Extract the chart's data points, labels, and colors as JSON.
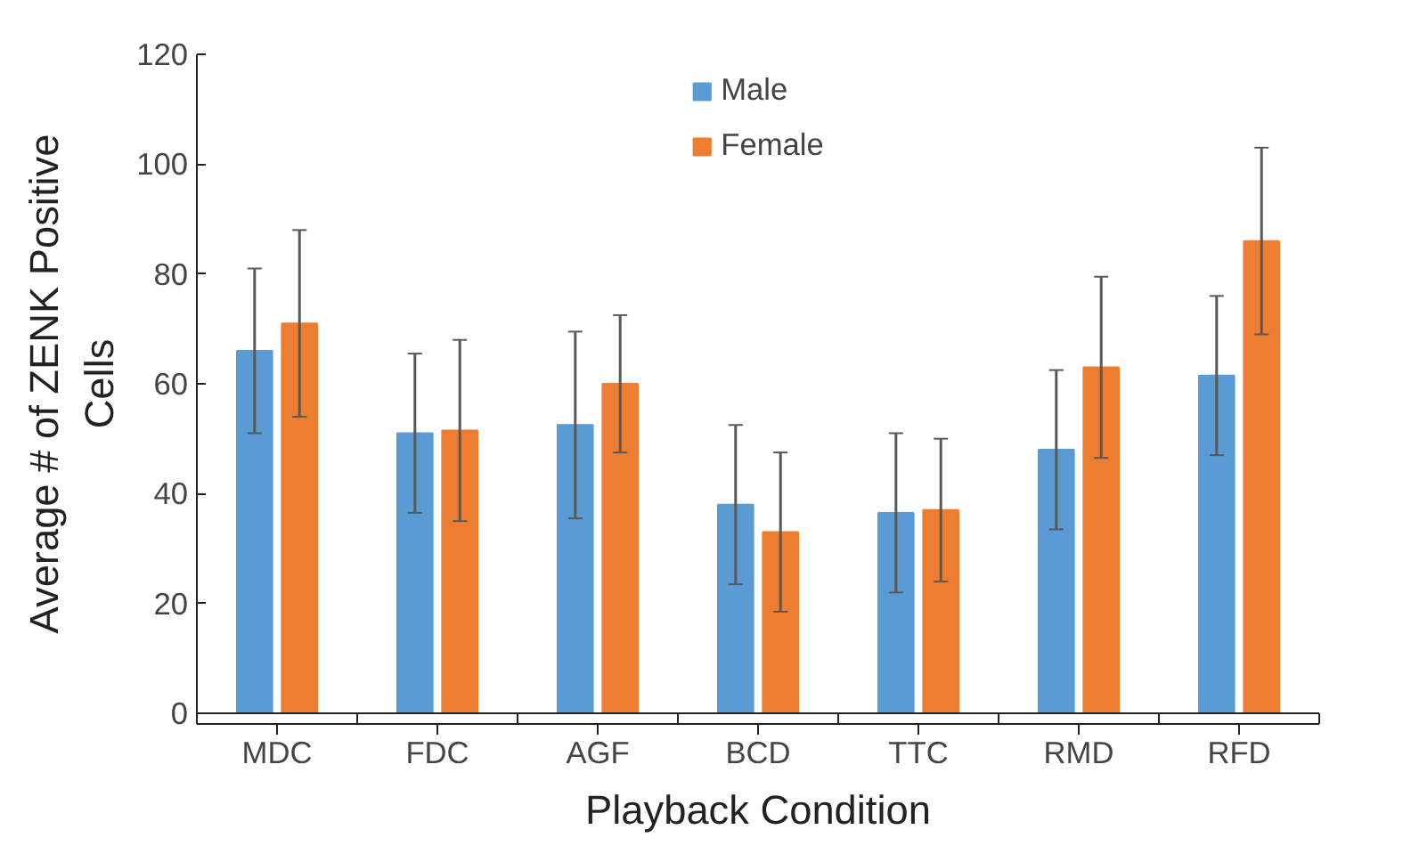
{
  "chart_data": {
    "type": "bar",
    "xlabel": "Playback Condition",
    "ylabel": "Average # of ZENK Positive\nCells",
    "categories": [
      "MDC",
      "FDC",
      "AGF",
      "BCD",
      "TTC",
      "RMD",
      "RFD"
    ],
    "series": [
      {
        "name": "Male",
        "color": "#5b9bd5",
        "values": [
          66,
          51,
          52.5,
          38,
          36.5,
          48,
          61.5
        ],
        "errors": [
          15,
          14.5,
          17,
          14.5,
          14.5,
          14.5,
          14.5
        ]
      },
      {
        "name": "Female",
        "color": "#ed7d31",
        "values": [
          71,
          51.5,
          60,
          33,
          37,
          63,
          86
        ],
        "errors": [
          17,
          16.5,
          12.5,
          14.5,
          13,
          16.5,
          17
        ]
      }
    ],
    "ylim": [
      0,
      120
    ],
    "yticks": [
      0,
      20,
      40,
      60,
      80,
      100,
      120
    ],
    "grid": false,
    "legend": "top"
  }
}
